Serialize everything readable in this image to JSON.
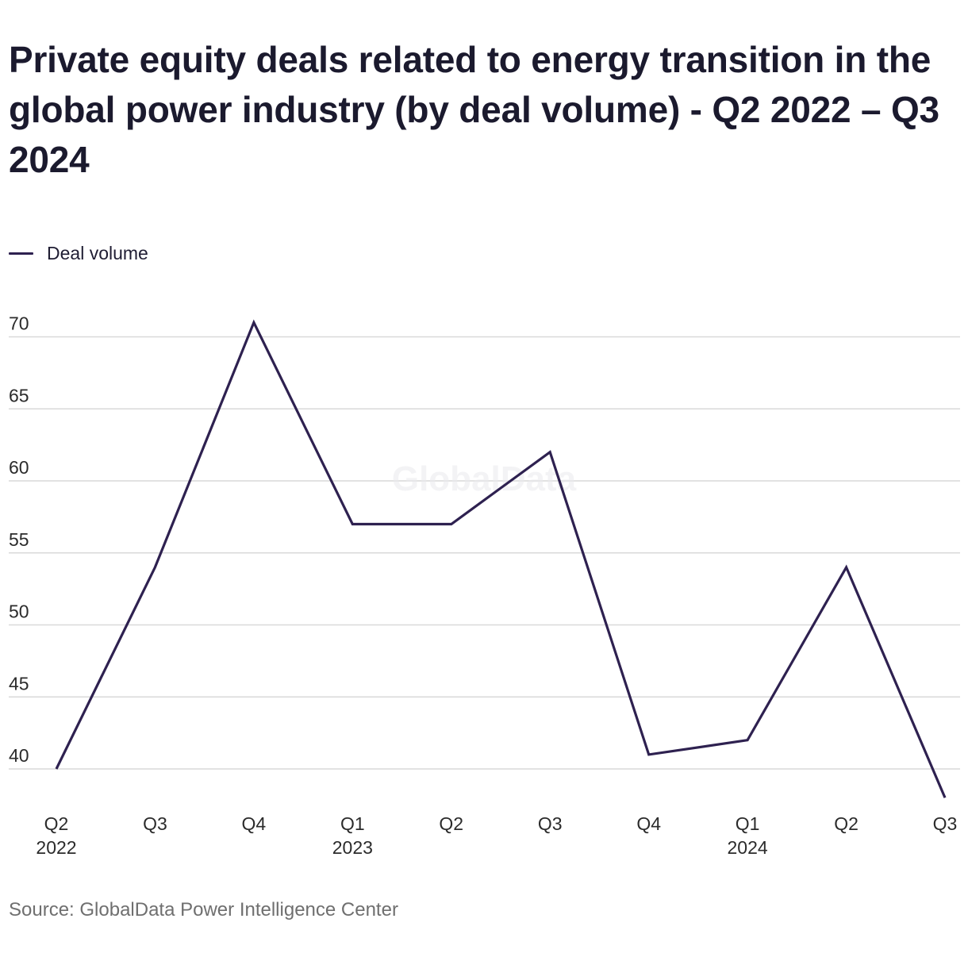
{
  "chart_data": {
    "type": "line",
    "title": "Private equity deals related to energy transition in the global power industry (by deal volume) - Q2 2022 – Q3 2024",
    "categories": [
      {
        "quarter": "Q2",
        "year": "2022"
      },
      {
        "quarter": "Q3",
        "year": ""
      },
      {
        "quarter": "Q4",
        "year": ""
      },
      {
        "quarter": "Q1",
        "year": "2023"
      },
      {
        "quarter": "Q2",
        "year": ""
      },
      {
        "quarter": "Q3",
        "year": ""
      },
      {
        "quarter": "Q4",
        "year": ""
      },
      {
        "quarter": "Q1",
        "year": "2024"
      },
      {
        "quarter": "Q2",
        "year": ""
      },
      {
        "quarter": "Q3",
        "year": ""
      }
    ],
    "series": [
      {
        "name": "Deal volume",
        "color": "#2e2150",
        "values": [
          40,
          54,
          71,
          57,
          57,
          62,
          41,
          42,
          54,
          38
        ]
      }
    ],
    "yticks": [
      40,
      45,
      50,
      55,
      60,
      65,
      70
    ],
    "ylim": [
      38,
      71
    ],
    "grid": true,
    "legend_position": "top-left",
    "watermark": "GlobalData",
    "source": "Source: GlobalData Power Intelligence Center"
  }
}
